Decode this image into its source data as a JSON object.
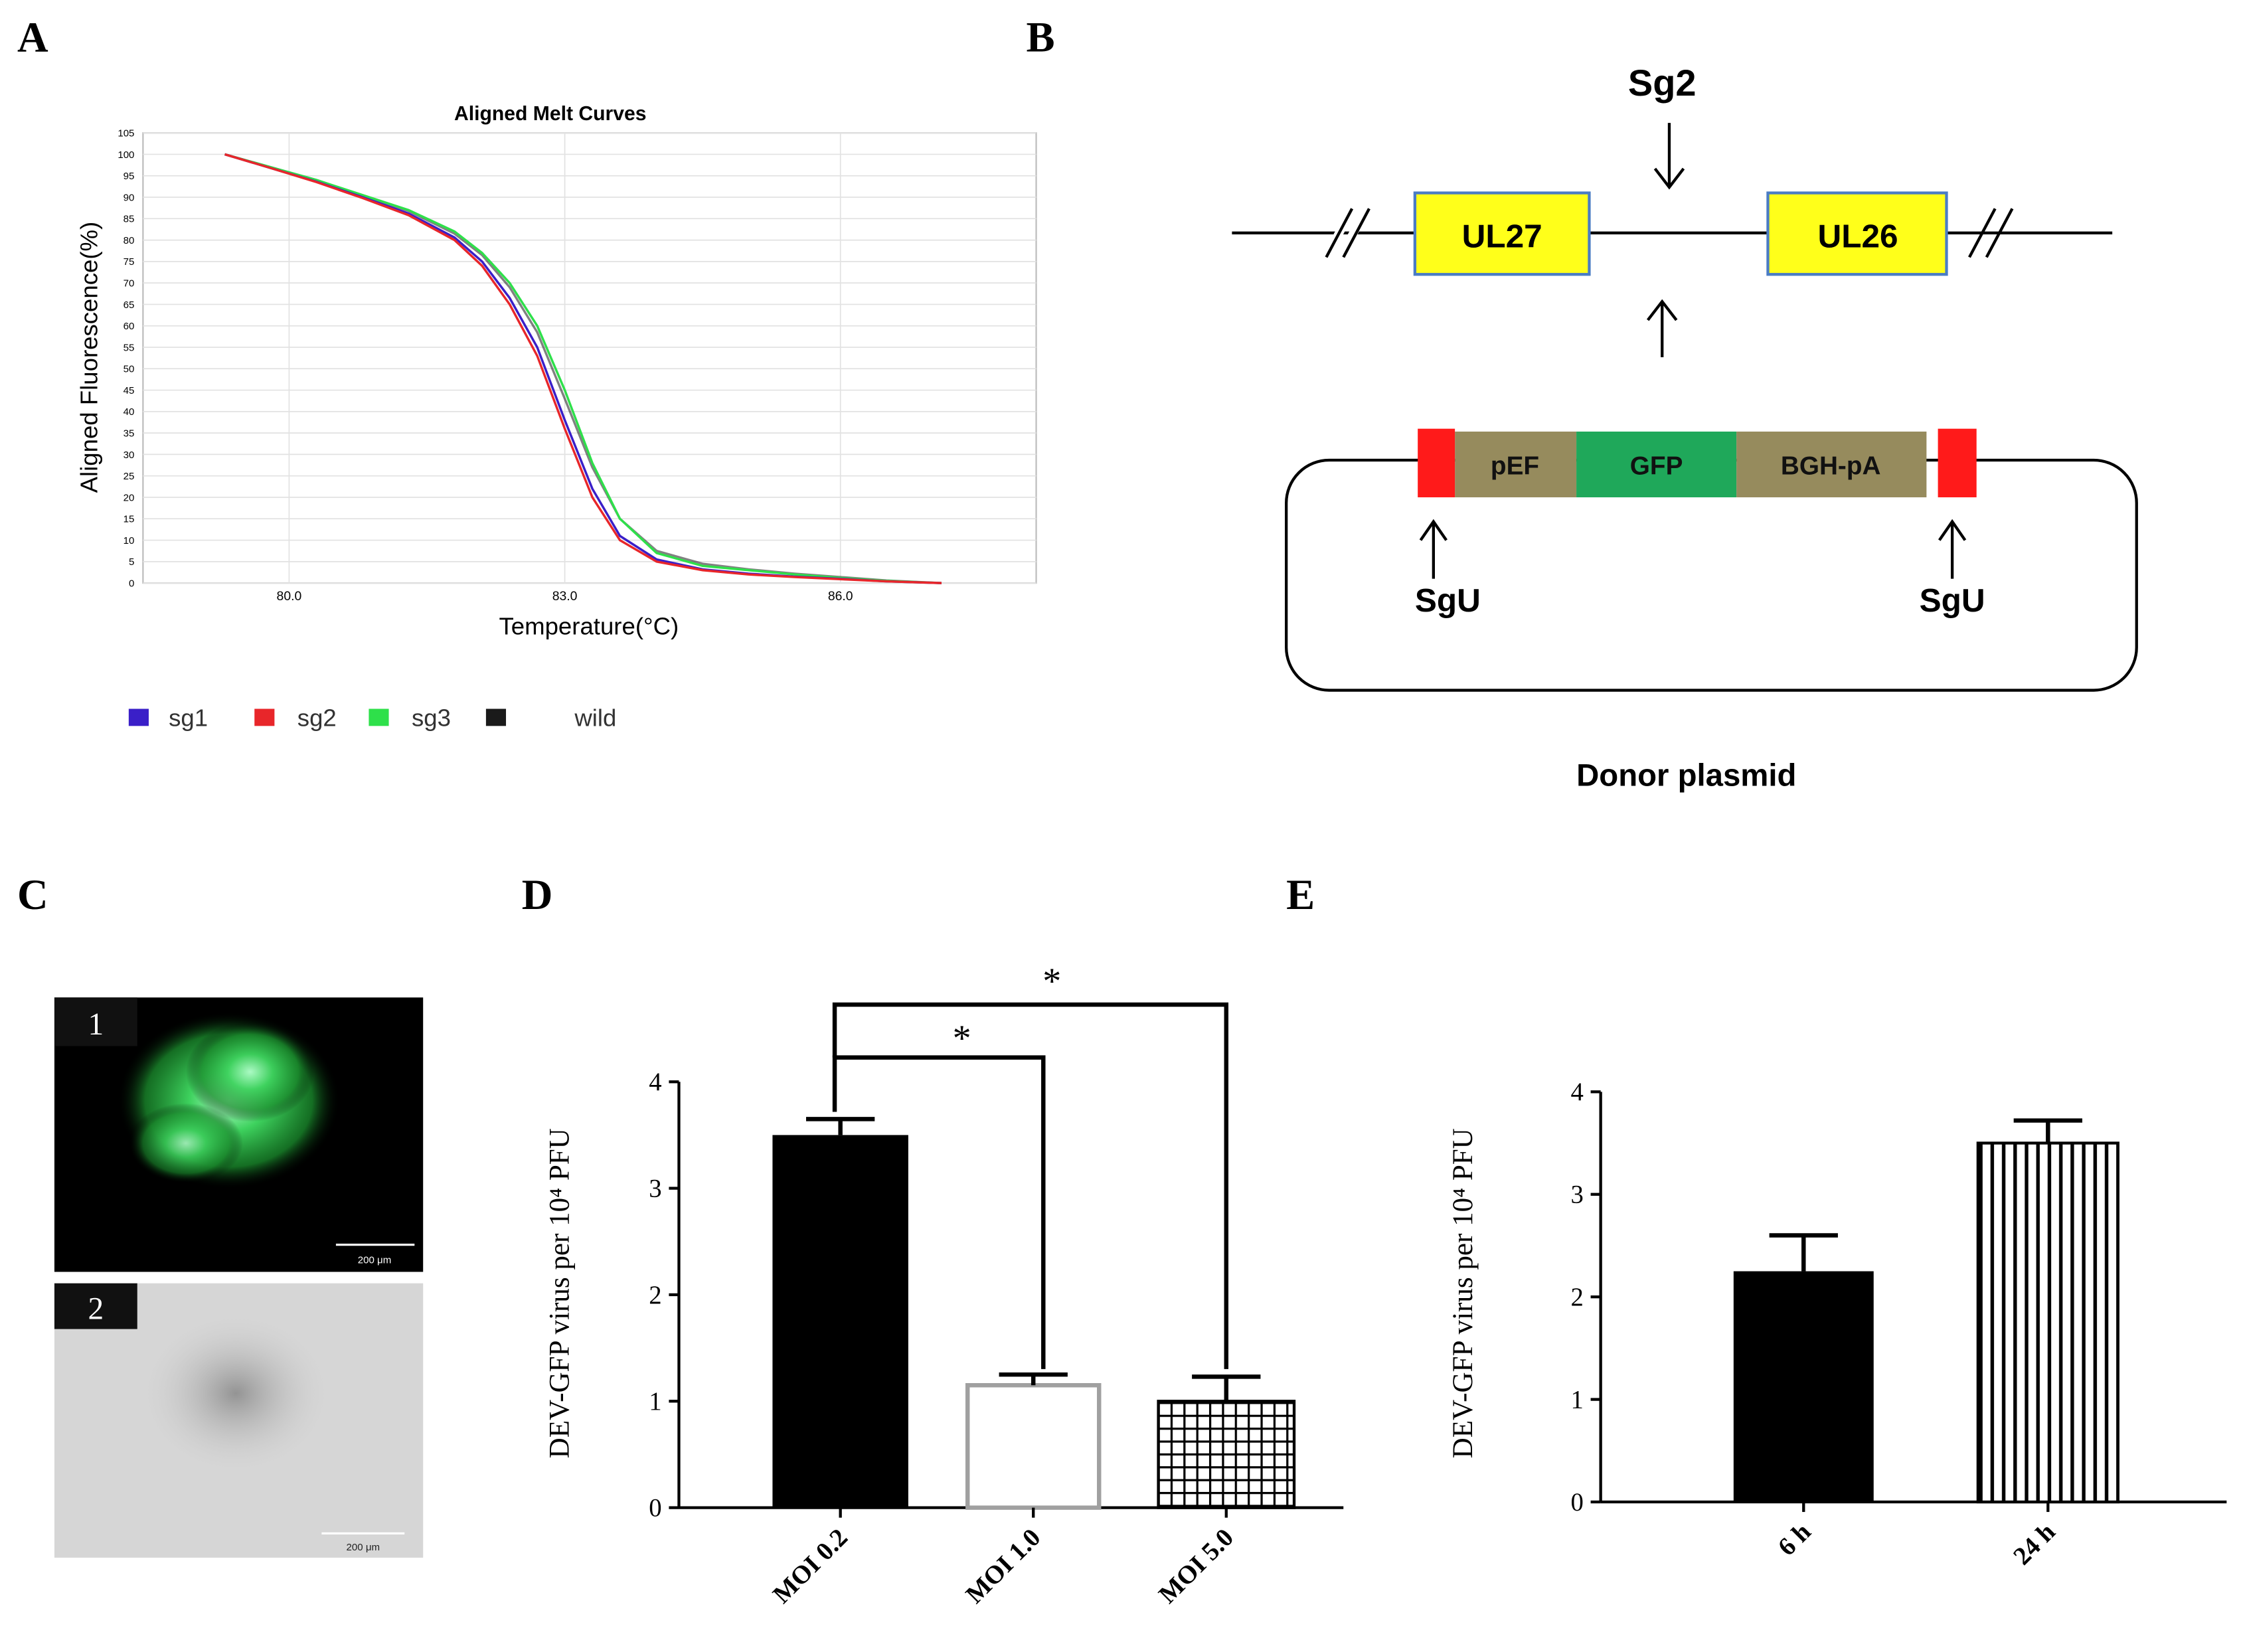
{
  "panels": [
    "A",
    "B",
    "C",
    "D",
    "E"
  ],
  "chart_data": [
    {
      "type": "line",
      "title": "Aligned Melt Curves",
      "xlabel": "Temperature(°C)",
      "ylabel": "Aligned Fluorescence(%)",
      "annotation": "sg2",
      "grid": true,
      "legend": "bottom",
      "x": [
        79.3,
        79.8,
        80.3,
        80.8,
        81.3,
        81.8,
        82.1,
        82.4,
        82.7,
        83.0,
        83.3,
        83.6,
        84.0,
        84.5,
        85.0,
        85.5,
        86.0,
        86.5,
        87.1
      ],
      "series": [
        {
          "name": "sg1",
          "color": "#3a1fc8",
          "values": [
            100,
            96.8,
            93.6,
            90,
            86.2,
            80.6,
            75,
            66.5,
            55,
            38,
            22,
            11,
            5.5,
            3.2,
            2.2,
            1.5,
            1,
            0.4,
            0
          ]
        },
        {
          "name": "sg2",
          "color": "#e8262a",
          "values": [
            100,
            96.8,
            93.5,
            89.8,
            85.8,
            80,
            74,
            65,
            53,
            36,
            20,
            10,
            5,
            3,
            2,
            1.4,
            0.9,
            0.4,
            0
          ]
        },
        {
          "name": "sg3",
          "color": "#2ee04a",
          "values": [
            100,
            97,
            94,
            90.5,
            87,
            82,
            77,
            70,
            60,
            45,
            28,
            15,
            7,
            4,
            3,
            2,
            1.2,
            0.5,
            0
          ]
        },
        {
          "name": "wild",
          "color": "#1a1a1a",
          "values": [
            100,
            97,
            94,
            90.3,
            86.8,
            81.5,
            76.5,
            69,
            58.5,
            43,
            27,
            15,
            7.5,
            4.5,
            3.2,
            2.2,
            1.4,
            0.6,
            0
          ]
        }
      ],
      "xlim": [
        78.41,
        88.13
      ],
      "xticks": [
        {
          "value": 80,
          "label": "80.0"
        },
        {
          "value": 83,
          "label": "83.0"
        },
        {
          "value": 86,
          "label": "86.0"
        }
      ],
      "ylim": [
        0,
        105
      ],
      "yticks": [
        0,
        5,
        10,
        15,
        20,
        25,
        30,
        35,
        40,
        45,
        50,
        55,
        60,
        65,
        70,
        75,
        80,
        85,
        90,
        95,
        100,
        105
      ]
    },
    {
      "type": "bar",
      "ylabel": "DEV-GFP virus per 10⁴ PFU",
      "categories": [
        "MOI 0.2",
        "MOI 1.0",
        "MOI 5.0"
      ],
      "values": [
        3.5,
        1.15,
        1.0
      ],
      "errors": [
        0.15,
        0.1,
        0.23
      ],
      "patterns": [
        "solid",
        "hollow",
        "grid"
      ],
      "annotations": [
        "*",
        "*"
      ],
      "ylim": [
        0,
        4
      ],
      "yticks": [
        0,
        1,
        2,
        3,
        4
      ]
    },
    {
      "type": "bar",
      "ylabel": "DEV-GFP virus per 10⁴ PFU",
      "categories": [
        "6 h",
        "24 h"
      ],
      "values": [
        2.25,
        3.5
      ],
      "errors": [
        0.35,
        0.22
      ],
      "patterns": [
        "solid",
        "vertical-stripes"
      ],
      "ylim": [
        0,
        4
      ],
      "yticks": [
        0,
        1,
        2,
        3,
        4
      ]
    }
  ],
  "diagram": {
    "site": "Sg2",
    "genes": [
      "UL27",
      "UL26"
    ],
    "cassette": [
      "pEF",
      "GFP",
      "BGH-pA"
    ],
    "sgu": [
      "SgU",
      "SgU"
    ],
    "caption": "Donor plasmid"
  },
  "micrographs": [
    {
      "label": "1",
      "scale_bar": "200 μm"
    },
    {
      "label": "2",
      "scale_bar": "200 μm"
    }
  ]
}
